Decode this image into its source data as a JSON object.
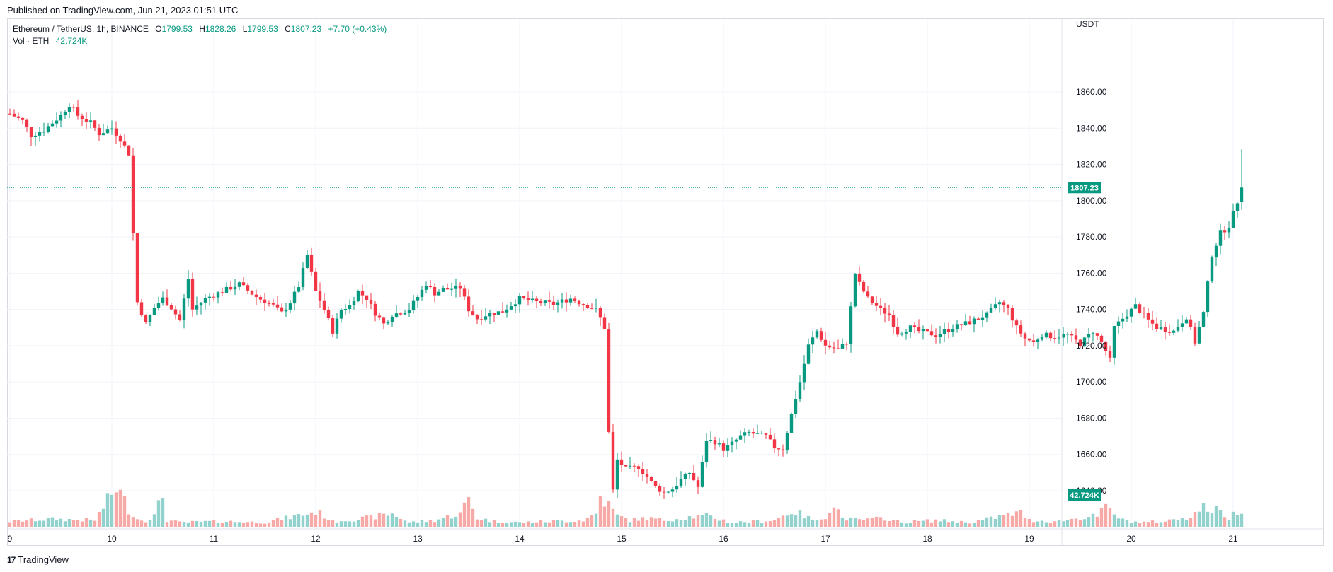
{
  "header": {
    "published": "Published on TradingView.com, Jun 21, 2023 01:51 UTC"
  },
  "legend": {
    "symbol": "Ethereum / TetherUS, 1h, BINANCE",
    "open_label": "O",
    "open": "1799.53",
    "high_label": "H",
    "high": "1828.26",
    "low_label": "L",
    "low": "1799.53",
    "close_label": "C",
    "close": "1807.23",
    "change": "+7.70 (+0.43%)",
    "vol_label": "Vol · ETH",
    "vol_value": "42.724K"
  },
  "footer": {
    "brand": "TradingView"
  },
  "colors": {
    "up": "#089981",
    "down": "#f23645",
    "vol_up": "#92d2cc",
    "vol_down": "#f7a9a7",
    "grid": "#f0f3fa",
    "text": "#131722"
  },
  "chart_data": {
    "type": "candlestick",
    "title": "Ethereum / TetherUS, 1h, BINANCE",
    "currency": "USDT",
    "ylim": [
      1620,
      1872
    ],
    "y_ticks": [
      1640,
      1660,
      1680,
      1700,
      1720,
      1740,
      1760,
      1780,
      1800,
      1820,
      1840,
      1860
    ],
    "y_tick_labels": [
      "1640.00",
      "1660.00",
      "1680.00",
      "1700.00",
      "1720.00",
      "1740.00",
      "1760.00",
      "1780.00",
      "1800.00",
      "1820.00",
      "1840.00",
      "1860.00"
    ],
    "x_ticks": [
      {
        "label": "9",
        "hour": 0
      },
      {
        "label": "10",
        "hour": 24
      },
      {
        "label": "11",
        "hour": 48
      },
      {
        "label": "12",
        "hour": 72
      },
      {
        "label": "13",
        "hour": 96
      },
      {
        "label": "14",
        "hour": 120
      },
      {
        "label": "15",
        "hour": 144
      },
      {
        "label": "16",
        "hour": 168
      },
      {
        "label": "17",
        "hour": 192
      },
      {
        "label": "18",
        "hour": 216
      },
      {
        "label": "19",
        "hour": 240
      },
      {
        "label": "20",
        "hour": 264
      },
      {
        "label": "21",
        "hour": 288
      }
    ],
    "bar_hours": 290,
    "last_price": 1807.23,
    "last_price_label": "1807.23",
    "last_volume_label": "42.724K",
    "close_path": [
      [
        0,
        1848
      ],
      [
        3,
        1844
      ],
      [
        5,
        1836
      ],
      [
        8,
        1839
      ],
      [
        12,
        1847
      ],
      [
        14,
        1853
      ],
      [
        16,
        1847
      ],
      [
        19,
        1843
      ],
      [
        21,
        1837
      ],
      [
        24,
        1840
      ],
      [
        26,
        1834
      ],
      [
        28,
        1826
      ],
      [
        29,
        1782
      ],
      [
        30,
        1744
      ],
      [
        32,
        1732
      ],
      [
        34,
        1741
      ],
      [
        36,
        1746
      ],
      [
        38,
        1741
      ],
      [
        40,
        1734
      ],
      [
        42,
        1757
      ],
      [
        43,
        1740
      ],
      [
        46,
        1746
      ],
      [
        50,
        1750
      ],
      [
        54,
        1754
      ],
      [
        58,
        1747
      ],
      [
        62,
        1742
      ],
      [
        64,
        1738
      ],
      [
        66,
        1744
      ],
      [
        68,
        1753
      ],
      [
        70,
        1770
      ],
      [
        72,
        1750
      ],
      [
        74,
        1740
      ],
      [
        76,
        1728
      ],
      [
        78,
        1740
      ],
      [
        80,
        1742
      ],
      [
        82,
        1750
      ],
      [
        84,
        1746
      ],
      [
        86,
        1738
      ],
      [
        88,
        1732
      ],
      [
        90,
        1737
      ],
      [
        94,
        1740
      ],
      [
        98,
        1754
      ],
      [
        100,
        1749
      ],
      [
        102,
        1751
      ],
      [
        106,
        1752
      ],
      [
        108,
        1740
      ],
      [
        110,
        1735
      ],
      [
        112,
        1737
      ],
      [
        116,
        1739
      ],
      [
        120,
        1746
      ],
      [
        124,
        1744
      ],
      [
        128,
        1743
      ],
      [
        132,
        1746
      ],
      [
        136,
        1742
      ],
      [
        138,
        1740
      ],
      [
        140,
        1730
      ],
      [
        141,
        1672
      ],
      [
        142,
        1640
      ],
      [
        143,
        1657
      ],
      [
        145,
        1652
      ],
      [
        148,
        1653
      ],
      [
        152,
        1642
      ],
      [
        154,
        1639
      ],
      [
        156,
        1641
      ],
      [
        158,
        1646
      ],
      [
        160,
        1650
      ],
      [
        162,
        1642
      ],
      [
        164,
        1668
      ],
      [
        166,
        1667
      ],
      [
        168,
        1663
      ],
      [
        170,
        1666
      ],
      [
        172,
        1670
      ],
      [
        174,
        1672
      ],
      [
        178,
        1670
      ],
      [
        180,
        1664
      ],
      [
        182,
        1663
      ],
      [
        184,
        1682
      ],
      [
        186,
        1700
      ],
      [
        188,
        1720
      ],
      [
        190,
        1728
      ],
      [
        192,
        1720
      ],
      [
        195,
        1718
      ],
      [
        197,
        1722
      ],
      [
        199,
        1760
      ],
      [
        200,
        1754
      ],
      [
        202,
        1746
      ],
      [
        205,
        1740
      ],
      [
        207,
        1737
      ],
      [
        209,
        1727
      ],
      [
        212,
        1730
      ],
      [
        214,
        1728
      ],
      [
        218,
        1726
      ],
      [
        222,
        1730
      ],
      [
        226,
        1733
      ],
      [
        230,
        1737
      ],
      [
        233,
        1744
      ],
      [
        235,
        1740
      ],
      [
        237,
        1730
      ],
      [
        239,
        1724
      ],
      [
        241,
        1722
      ],
      [
        243,
        1726
      ],
      [
        246,
        1725
      ],
      [
        249,
        1726
      ],
      [
        252,
        1721
      ],
      [
        255,
        1728
      ],
      [
        257,
        1722
      ],
      [
        259,
        1712
      ],
      [
        260,
        1730
      ],
      [
        262,
        1735
      ],
      [
        265,
        1742
      ],
      [
        268,
        1734
      ],
      [
        270,
        1730
      ],
      [
        274,
        1728
      ],
      [
        277,
        1736
      ],
      [
        279,
        1722
      ],
      [
        281,
        1738
      ],
      [
        283,
        1770
      ],
      [
        285,
        1782
      ],
      [
        287,
        1786
      ],
      [
        289,
        1799.53
      ],
      [
        290,
        1807.23
      ]
    ],
    "volume_path": [
      [
        0,
        5
      ],
      [
        10,
        7
      ],
      [
        20,
        6
      ],
      [
        24,
        30
      ],
      [
        25,
        37
      ],
      [
        27,
        24
      ],
      [
        28,
        16
      ],
      [
        30,
        7
      ],
      [
        32,
        6
      ],
      [
        34,
        10
      ],
      [
        36,
        29
      ],
      [
        37,
        6
      ],
      [
        40,
        4
      ],
      [
        50,
        5
      ],
      [
        60,
        4
      ],
      [
        70,
        12
      ],
      [
        72,
        14
      ],
      [
        74,
        10
      ],
      [
        76,
        5
      ],
      [
        84,
        8
      ],
      [
        90,
        12
      ],
      [
        94,
        4
      ],
      [
        100,
        6
      ],
      [
        106,
        12
      ],
      [
        108,
        26
      ],
      [
        110,
        8
      ],
      [
        114,
        5
      ],
      [
        120,
        4
      ],
      [
        135,
        6
      ],
      [
        138,
        12
      ],
      [
        139,
        28
      ],
      [
        141,
        20
      ],
      [
        143,
        10
      ],
      [
        146,
        6
      ],
      [
        150,
        8
      ],
      [
        154,
        6
      ],
      [
        160,
        9
      ],
      [
        164,
        10
      ],
      [
        166,
        8
      ],
      [
        170,
        4
      ],
      [
        180,
        6
      ],
      [
        184,
        14
      ],
      [
        186,
        12
      ],
      [
        188,
        8
      ],
      [
        190,
        5
      ],
      [
        192,
        10
      ],
      [
        194,
        22
      ],
      [
        196,
        8
      ],
      [
        200,
        6
      ],
      [
        206,
        8
      ],
      [
        210,
        4
      ],
      [
        218,
        6
      ],
      [
        226,
        4
      ],
      [
        234,
        10
      ],
      [
        238,
        13
      ],
      [
        240,
        6
      ],
      [
        246,
        5
      ],
      [
        252,
        8
      ],
      [
        256,
        10
      ],
      [
        258,
        18
      ],
      [
        260,
        12
      ],
      [
        262,
        6
      ],
      [
        266,
        4
      ],
      [
        272,
        5
      ],
      [
        278,
        10
      ],
      [
        281,
        18
      ],
      [
        283,
        16
      ],
      [
        285,
        14
      ],
      [
        287,
        8
      ],
      [
        289,
        15
      ],
      [
        290,
        17
      ]
    ],
    "volume_max": 62
  }
}
